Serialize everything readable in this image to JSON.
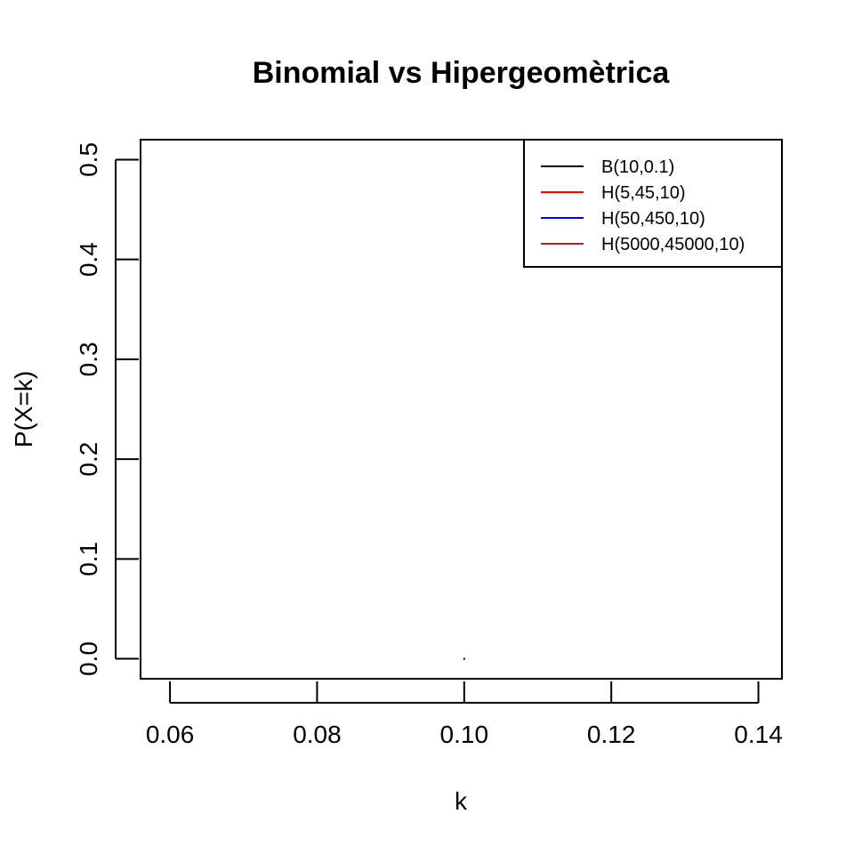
{
  "chart_data": {
    "type": "line",
    "title": "Binomial vs Hipergeomètrica",
    "xlabel": "k",
    "ylabel": "P(X=k)",
    "xlim": [
      0.056,
      0.1432
    ],
    "ylim": [
      -0.02,
      0.52
    ],
    "xticks": [
      0.06,
      0.08,
      0.1,
      0.12,
      0.14
    ],
    "xtick_labels": [
      "0.06",
      "0.08",
      "0.10",
      "0.12",
      "0.14"
    ],
    "yticks": [
      0.0,
      0.1,
      0.2,
      0.3,
      0.4,
      0.5
    ],
    "ytick_labels": [
      "0.0",
      "0.1",
      "0.2",
      "0.3",
      "0.4",
      "0.5"
    ],
    "grid": false,
    "legend_position": "top-right",
    "series": [
      {
        "name": "B(10,0.1)",
        "color": "#000000",
        "x": [
          0.1
        ],
        "y": [
          0.0
        ]
      },
      {
        "name": "H(5,45,10)",
        "color": "#ff0000",
        "x": [],
        "y": []
      },
      {
        "name": "H(50,450,10)",
        "color": "#0000ff",
        "x": [],
        "y": []
      },
      {
        "name": "H(5000,45000,10)",
        "color": "#a52a2a",
        "x": [],
        "y": []
      }
    ]
  }
}
